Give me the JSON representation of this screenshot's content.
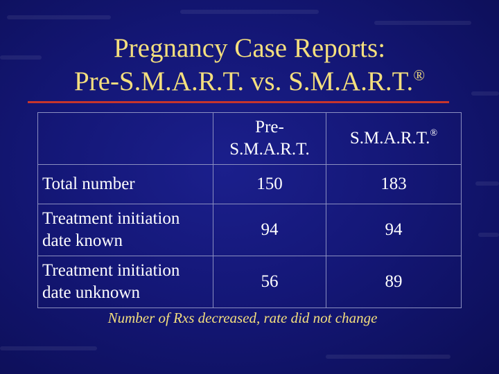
{
  "slide": {
    "title_line1": "Pregnancy Case Reports:",
    "title_line2": "Pre-S.M.A.R.T. vs. S.M.A.R.T.",
    "title_mark": "®",
    "caption": "Number of Rxs decreased, rate did not change"
  },
  "table": {
    "col_headers": [
      {
        "line1": "Pre-",
        "line2": "S.M.A.R.T."
      },
      {
        "text": "S.M.A.R.T.",
        "mark": "®"
      }
    ],
    "rows": [
      {
        "line1": "Total number",
        "pre": "150",
        "smart": "183"
      },
      {
        "line1": "Treatment initiation",
        "line2": "date known",
        "pre": "94",
        "smart": "94"
      },
      {
        "line1": "Treatment initiation",
        "line2": "date unknown",
        "pre": "56",
        "smart": "89"
      }
    ]
  },
  "colors": {
    "background": "#141777",
    "title": "#f4df7e",
    "rule": "#c7352c",
    "text": "#ffffff",
    "grid": "#8b8fc0"
  }
}
